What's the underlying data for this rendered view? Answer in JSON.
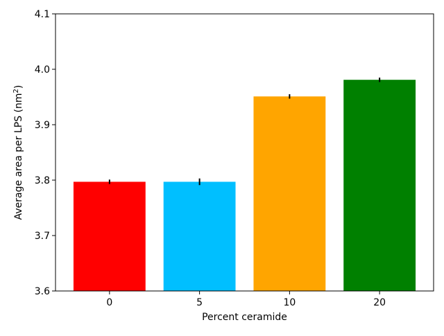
{
  "chart_data": {
    "type": "bar",
    "title": "",
    "xlabel": "Percent ceramide",
    "ylabel": {
      "text": "Average area per LPS (nm",
      "superscript": "2",
      "suffix": ")"
    },
    "categories": [
      "0",
      "5",
      "10",
      "20"
    ],
    "values": [
      3.797,
      3.797,
      3.951,
      3.981
    ],
    "errors": [
      0.004,
      0.006,
      0.004,
      0.004
    ],
    "colors": [
      "#ff0000",
      "#00bfff",
      "#ffa500",
      "#008000"
    ],
    "ylim": [
      3.6,
      4.1
    ],
    "yticks": [
      3.6,
      3.7,
      3.8,
      3.9,
      4.0,
      4.1
    ],
    "ytick_labels": [
      "3.6",
      "3.7",
      "3.8",
      "3.9",
      "4.0",
      "4.1"
    ],
    "grid": false,
    "legend": "none"
  }
}
